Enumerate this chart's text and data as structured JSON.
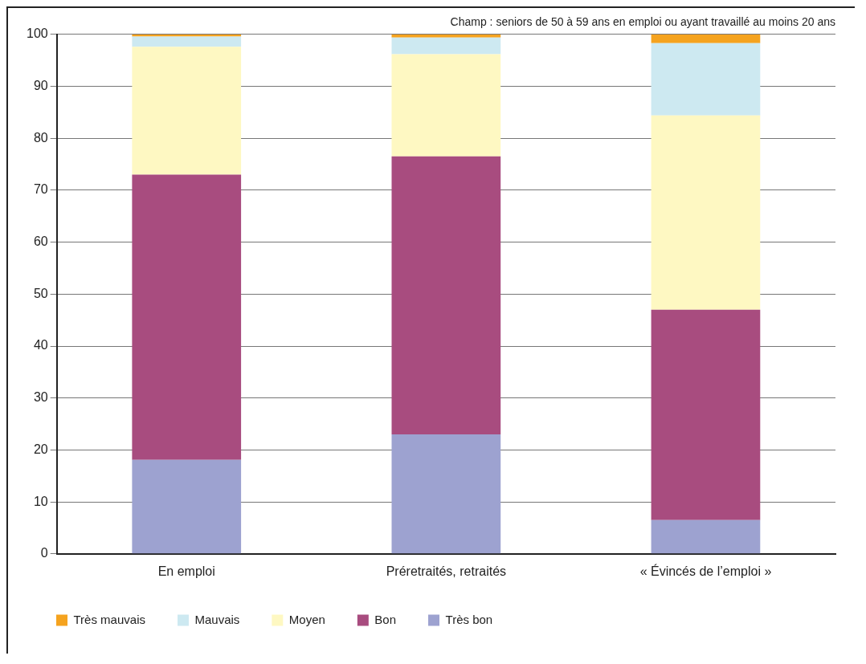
{
  "chart_data": {
    "type": "bar",
    "stacked": true,
    "categories": [
      "En emploi",
      "Préretraités, retraités",
      "« Évincés de l’emploi »"
    ],
    "series": [
      {
        "name": "Très bon",
        "color": "#9da2d0",
        "values": [
          18.1,
          23,
          6.5
        ]
      },
      {
        "name": "Bon",
        "color": "#a84c7f",
        "values": [
          54.9,
          53.5,
          40.5
        ]
      },
      {
        "name": "Moyen",
        "color": "#fef8c2",
        "values": [
          24.6,
          19.7,
          37.4
        ]
      },
      {
        "name": "Mauvais",
        "color": "#cde9f1",
        "values": [
          2.0,
          3.2,
          13.9
        ]
      },
      {
        "name": "Très mauvais",
        "color": "#f5a31f",
        "values": [
          0.4,
          0.6,
          1.7
        ]
      }
    ],
    "ylim": [
      0,
      100
    ],
    "yticks": [
      0,
      10,
      20,
      30,
      40,
      50,
      60,
      70,
      80,
      90,
      100
    ],
    "grid": "y",
    "legend": "bottom",
    "annotations": [
      "Champ : seniors de 50 à 59 ans en emploi ou ayant travaillé au moins 20 ans"
    ]
  }
}
